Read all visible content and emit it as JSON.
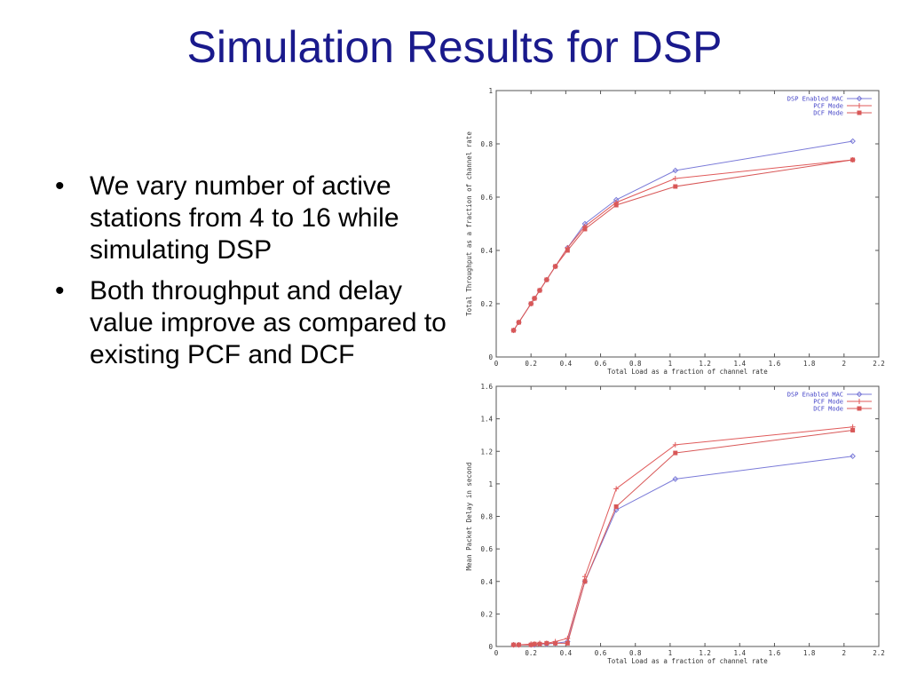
{
  "slide": {
    "title": "Simulation Results for DSP",
    "bullets": [
      "We vary number of active stations from 4 to 16 while simulating DSP",
      "Both throughput and delay value improve as compared to existing PCF and DCF"
    ]
  },
  "chart_data": [
    {
      "type": "line",
      "xlabel": "Total Load as a fraction of channel rate",
      "ylabel": "Total Throughput as a fraction of channel rate",
      "xlim": [
        0,
        2.2
      ],
      "ylim": [
        0,
        1
      ],
      "xticks": [
        "0",
        "0.2",
        "0.4",
        "0.6",
        "0.8",
        "1",
        "1.2",
        "1.4",
        "1.6",
        "1.8",
        "2",
        "2.2"
      ],
      "yticks": [
        "0",
        "0.2",
        "0.4",
        "0.6",
        "0.8",
        "1"
      ],
      "legend_position": "top-right",
      "grid": false,
      "series": [
        {
          "name": "DSP Enabled MAC",
          "color": "#7a7ad8",
          "marker": "diamond",
          "x": [
            0.1,
            0.13,
            0.2,
            0.22,
            0.25,
            0.29,
            0.34,
            0.41,
            0.51,
            0.69,
            1.03,
            2.05
          ],
          "y": [
            0.1,
            0.13,
            0.2,
            0.22,
            0.25,
            0.29,
            0.34,
            0.41,
            0.5,
            0.59,
            0.7,
            0.81
          ]
        },
        {
          "name": "PCF Mode",
          "color": "#e05a5a",
          "marker": "plus",
          "x": [
            0.1,
            0.13,
            0.2,
            0.22,
            0.25,
            0.29,
            0.34,
            0.41,
            0.51,
            0.69,
            1.03,
            2.05
          ],
          "y": [
            0.1,
            0.13,
            0.2,
            0.22,
            0.25,
            0.29,
            0.34,
            0.41,
            0.49,
            0.58,
            0.67,
            0.74
          ]
        },
        {
          "name": "DCF Mode",
          "color": "#d85858",
          "marker": "square",
          "x": [
            0.1,
            0.13,
            0.2,
            0.22,
            0.25,
            0.29,
            0.34,
            0.41,
            0.51,
            0.69,
            1.03,
            2.05
          ],
          "y": [
            0.1,
            0.13,
            0.2,
            0.22,
            0.25,
            0.29,
            0.34,
            0.4,
            0.48,
            0.57,
            0.64,
            0.74
          ]
        }
      ]
    },
    {
      "type": "line",
      "xlabel": "Total Load as a fraction of channel rate",
      "ylabel": "Mean Packet Delay in second",
      "xlim": [
        0,
        2.2
      ],
      "ylim": [
        0,
        1.6
      ],
      "xticks": [
        "0",
        "0.2",
        "0.4",
        "0.6",
        "0.8",
        "1",
        "1.2",
        "1.4",
        "1.6",
        "1.8",
        "2",
        "2.2"
      ],
      "yticks": [
        "0",
        "0.2",
        "0.4",
        "0.6",
        "0.8",
        "1",
        "1.2",
        "1.4",
        "1.6"
      ],
      "legend_position": "top-right",
      "grid": false,
      "series": [
        {
          "name": "DSP Enabled MAC",
          "color": "#7a7ad8",
          "marker": "diamond",
          "x": [
            0.1,
            0.13,
            0.2,
            0.22,
            0.25,
            0.29,
            0.34,
            0.41,
            0.51,
            0.69,
            1.03,
            2.05
          ],
          "y": [
            0.01,
            0.01,
            0.01,
            0.01,
            0.015,
            0.015,
            0.02,
            0.03,
            0.4,
            0.84,
            1.03,
            1.17
          ]
        },
        {
          "name": "PCF Mode",
          "color": "#e05a5a",
          "marker": "plus",
          "x": [
            0.1,
            0.13,
            0.2,
            0.22,
            0.25,
            0.29,
            0.34,
            0.41,
            0.51,
            0.69,
            1.03,
            2.05
          ],
          "y": [
            0.01,
            0.01,
            0.015,
            0.015,
            0.02,
            0.02,
            0.03,
            0.05,
            0.43,
            0.97,
            1.24,
            1.35
          ]
        },
        {
          "name": "DCF Mode",
          "color": "#d85858",
          "marker": "square",
          "x": [
            0.1,
            0.13,
            0.2,
            0.22,
            0.25,
            0.29,
            0.34,
            0.41,
            0.51,
            0.69,
            1.03,
            2.05
          ],
          "y": [
            0.01,
            0.01,
            0.01,
            0.015,
            0.015,
            0.02,
            0.02,
            0.02,
            0.4,
            0.86,
            1.19,
            1.33
          ]
        }
      ]
    }
  ]
}
